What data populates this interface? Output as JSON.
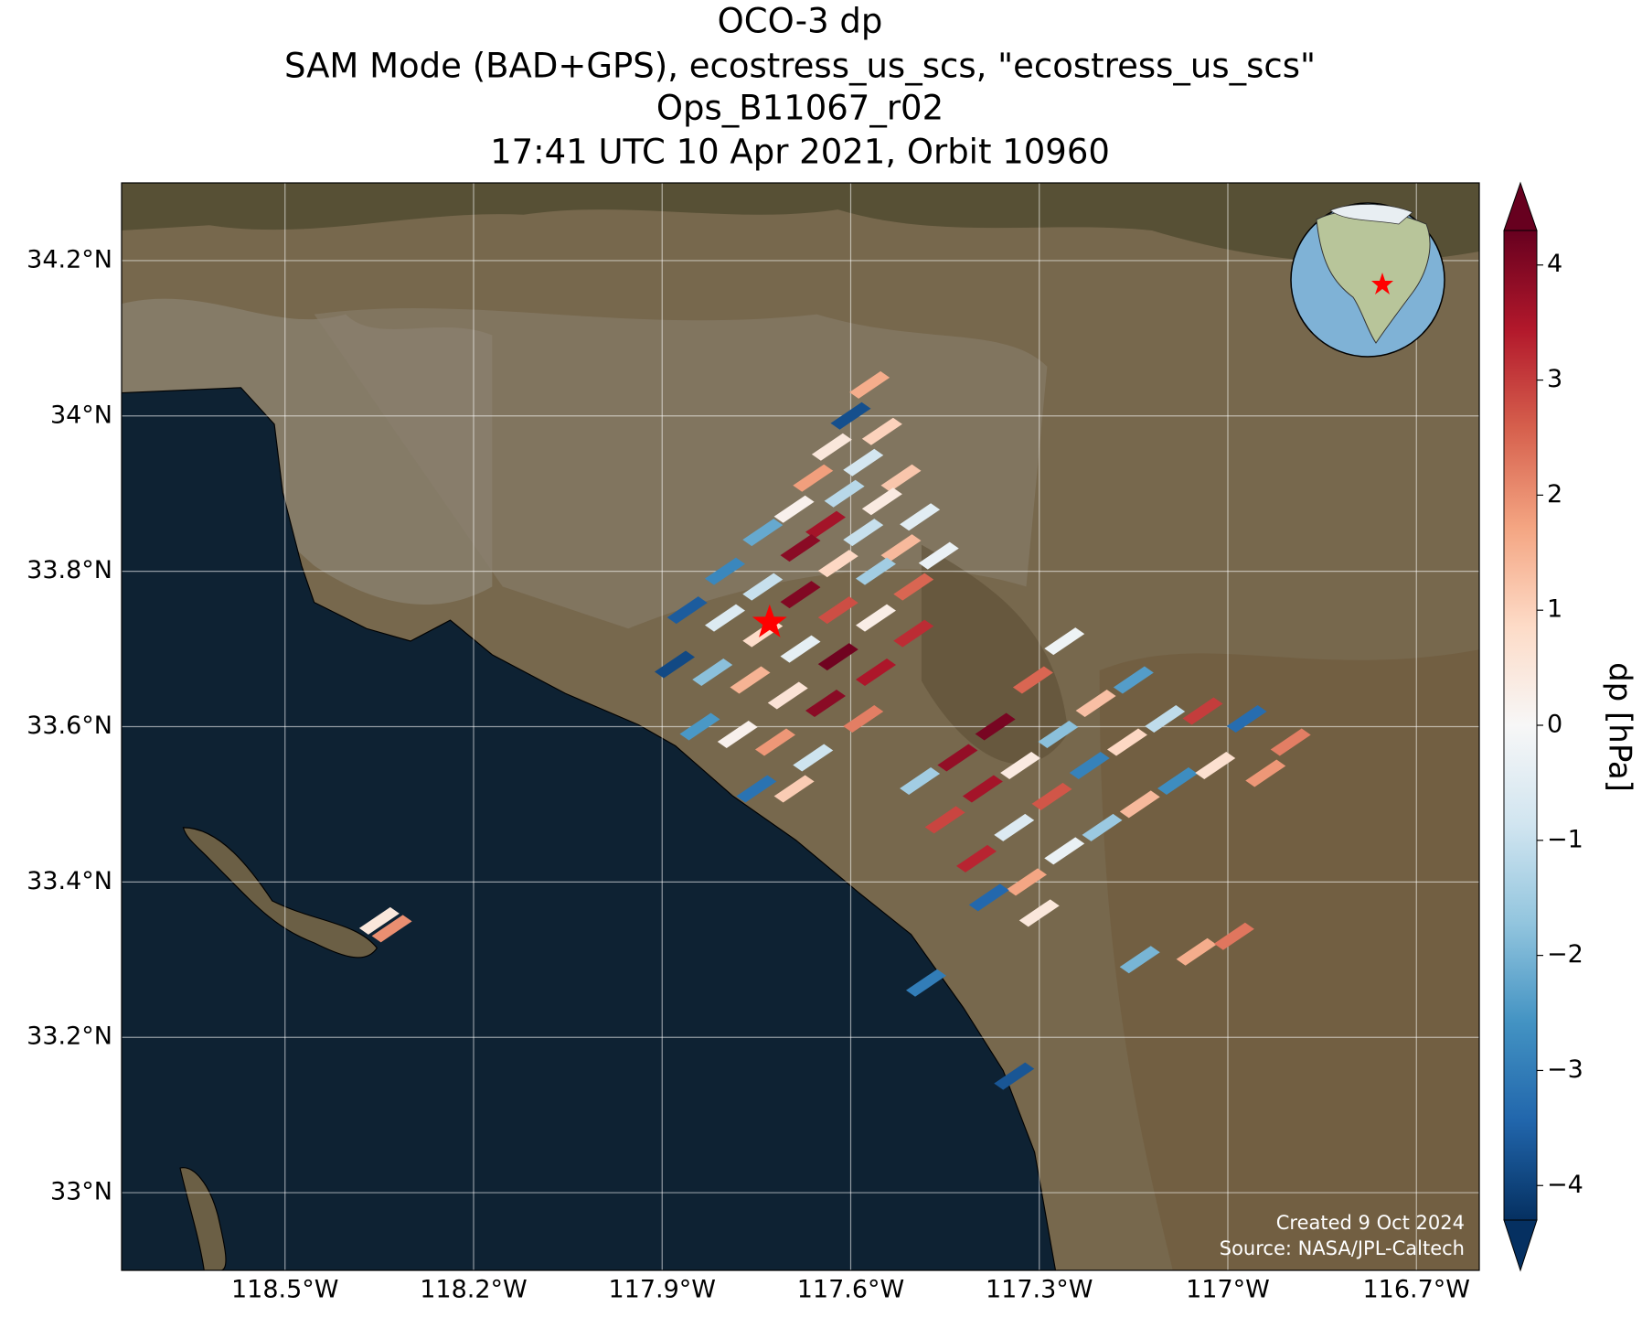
{
  "map": {
    "title": [
      "OCO-3 dp",
      "SAM Mode (BAD+GPS), ecostress_us_scs, \"ecostress_us_scs\"",
      "Ops_B11067_r02",
      "17:41 UTC 10 Apr 2021, Orbit 10960"
    ],
    "xlim": [
      -118.76,
      -116.6
    ],
    "ylim": [
      32.9,
      34.3
    ],
    "xticks": [
      {
        "value": -118.5,
        "label": "118.5°W"
      },
      {
        "value": -118.2,
        "label": "118.2°W"
      },
      {
        "value": -117.9,
        "label": "117.9°W"
      },
      {
        "value": -117.6,
        "label": "117.6°W"
      },
      {
        "value": -117.3,
        "label": "117.3°W"
      },
      {
        "value": -117,
        "label": "117°W"
      },
      {
        "value": -116.7,
        "label": "116.7°W"
      }
    ],
    "yticks": [
      {
        "value": 33,
        "label": "33°N"
      },
      {
        "value": 33.2,
        "label": "33.2°N"
      },
      {
        "value": 33.4,
        "label": "33.4°N"
      },
      {
        "value": 33.6,
        "label": "33.6°N"
      },
      {
        "value": 33.8,
        "label": "33.8°N"
      },
      {
        "value": 34,
        "label": "34°N"
      },
      {
        "value": 34.2,
        "label": "34.2°N"
      }
    ],
    "grid": true,
    "colorbar": {
      "label": "dp [hPa]",
      "clim": [
        -4.3,
        4.3
      ],
      "ticks": [
        {
          "value": -4,
          "label": "−4"
        },
        {
          "value": -3,
          "label": "−3"
        },
        {
          "value": -2,
          "label": "−2"
        },
        {
          "value": -1,
          "label": "−1"
        },
        0,
        1,
        2,
        3,
        4
      ],
      "colormap": [
        "#053061",
        "#2166ac",
        "#4393c3",
        "#92c5de",
        "#d1e5f0",
        "#f7f7f7",
        "#fddbc7",
        "#f4a582",
        "#d6604d",
        "#b2182b",
        "#67001f"
      ]
    },
    "target": {
      "lon": -117.729,
      "lat": 33.734,
      "color": "#ff0000"
    },
    "soundings": {
      "lon": [
        -117.57,
        -117.6,
        -117.55,
        -117.63,
        -117.58,
        -117.52,
        -117.66,
        -117.61,
        -117.55,
        -117.49,
        -117.69,
        -117.64,
        -117.58,
        -117.52,
        -117.46,
        -117.74,
        -117.68,
        -117.62,
        -117.56,
        -117.5,
        -117.8,
        -117.74,
        -117.68,
        -117.62,
        -117.56,
        -117.5,
        -117.86,
        -117.8,
        -117.74,
        -117.68,
        -117.62,
        -117.56,
        -117.88,
        -117.82,
        -117.76,
        -117.7,
        -117.64,
        -117.58,
        -117.84,
        -117.78,
        -117.72,
        -117.66,
        -117.75,
        -117.69,
        -117.49,
        -117.43,
        -117.37,
        -117.31,
        -117.26,
        -117.45,
        -117.39,
        -117.33,
        -117.27,
        -117.21,
        -117.15,
        -117.4,
        -117.34,
        -117.28,
        -117.22,
        -117.16,
        -117.1,
        -117.04,
        -116.97,
        -116.9,
        -117.32,
        -117.26,
        -117.2,
        -117.14,
        -117.08,
        -117.02,
        -116.94,
        -117.38,
        -117.3,
        -117.14,
        -117.05,
        -116.99,
        -117.48,
        -117.34,
        -118.35,
        -118.33
      ],
      "lat": [
        34.04,
        34.0,
        33.98,
        33.96,
        33.94,
        33.92,
        33.92,
        33.9,
        33.89,
        33.87,
        33.88,
        33.86,
        33.85,
        33.83,
        33.82,
        33.85,
        33.83,
        33.81,
        33.8,
        33.78,
        33.8,
        33.78,
        33.77,
        33.75,
        33.74,
        33.72,
        33.75,
        33.74,
        33.72,
        33.7,
        33.69,
        33.67,
        33.68,
        33.67,
        33.66,
        33.64,
        33.63,
        33.61,
        33.6,
        33.59,
        33.58,
        33.56,
        33.52,
        33.52,
        33.53,
        33.56,
        33.6,
        33.66,
        33.71,
        33.48,
        33.52,
        33.55,
        33.59,
        33.63,
        33.66,
        33.43,
        33.47,
        33.51,
        33.55,
        33.58,
        33.61,
        33.62,
        33.61,
        33.58,
        33.4,
        33.44,
        33.47,
        33.5,
        33.53,
        33.55,
        33.54,
        33.38,
        33.36,
        33.3,
        33.31,
        33.33,
        33.27,
        33.15,
        33.35,
        33.34
      ],
      "dp": [
        1.6,
        -3.8,
        1.0,
        0.5,
        -0.8,
        1.2,
        1.8,
        -1.2,
        0.4,
        -0.5,
        0.2,
        3.6,
        -1.0,
        1.4,
        -0.3,
        -2.2,
        3.9,
        0.9,
        -1.5,
        2.5,
        -2.8,
        -1.0,
        4.0,
        2.8,
        0.3,
        3.2,
        -3.6,
        -0.6,
        0.8,
        -0.4,
        4.2,
        3.5,
        -3.9,
        -1.8,
        1.5,
        0.6,
        3.9,
        2.2,
        -2.5,
        0.2,
        1.9,
        -0.9,
        -3.2,
        1.1,
        -1.5,
        3.8,
        4.1,
        2.5,
        -0.2,
        2.9,
        3.6,
        0.4,
        -1.8,
        1.3,
        -2.4,
        3.3,
        -0.6,
        2.7,
        -2.9,
        0.9,
        -1.1,
        3.0,
        -3.3,
        2.2,
        1.7,
        -0.3,
        -1.6,
        1.4,
        -2.7,
        0.7,
        1.9,
        -3.4,
        0.5,
        -2.0,
        1.6,
        2.3,
        -3.0,
        -3.7,
        0.5,
        2.0
      ]
    },
    "credit": [
      "Created 9 Oct 2024",
      "Source: NASA/JPL-Caltech"
    ]
  }
}
